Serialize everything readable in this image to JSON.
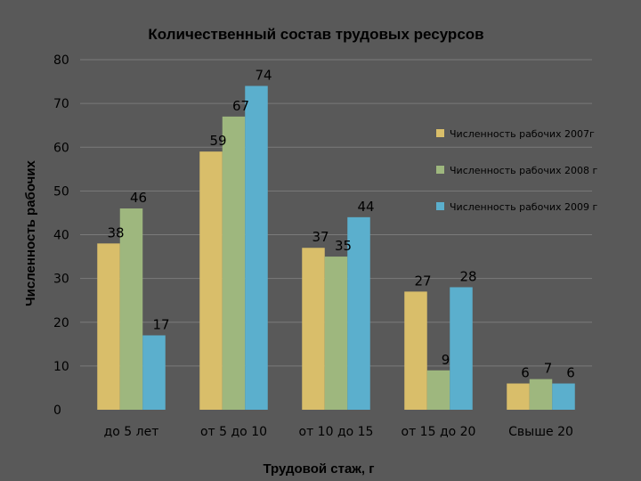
{
  "chart_data": {
    "type": "bar",
    "title": "Количественный состав трудовых ресурсов",
    "xlabel": "Трудовой стаж, г",
    "ylabel": "Численность рабочих",
    "ylim": [
      0,
      80
    ],
    "yticks": [
      0,
      10,
      20,
      30,
      40,
      50,
      60,
      70,
      80
    ],
    "grid": true,
    "legend_position": "right",
    "categories": [
      "до 5 лет",
      "от 5 до 10",
      "от 10 до 15",
      "от 15 до 20",
      "Свыше 20"
    ],
    "series": [
      {
        "name": "Численность рабочих 2007г",
        "color": "#D9BE6A",
        "values": [
          38,
          59,
          37,
          27,
          6
        ]
      },
      {
        "name": "Численность рабочих 2008 г",
        "color": "#9EB77E",
        "values": [
          46,
          67,
          35,
          9,
          7
        ]
      },
      {
        "name": "Численность рабочих 2009 г",
        "color": "#5BAFCD",
        "values": [
          17,
          74,
          44,
          28,
          6
        ]
      }
    ]
  }
}
